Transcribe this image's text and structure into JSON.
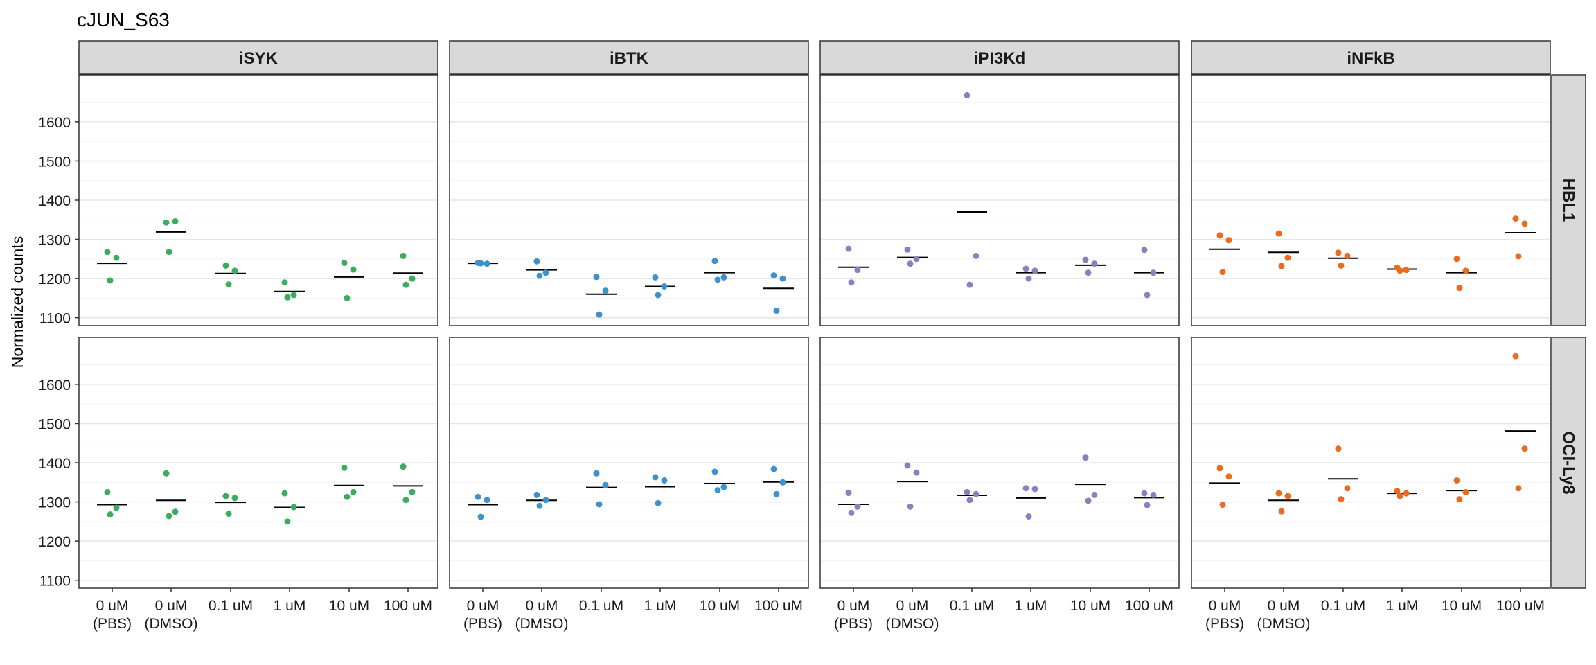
{
  "chart_data": {
    "type": "scatter",
    "title": "cJUN_S63",
    "ylabel": "Normalized counts",
    "xlabel": "",
    "ylim": [
      1080,
      1720
    ],
    "yticks": [
      1100,
      1200,
      1300,
      1400,
      1500,
      1600
    ],
    "grid": true,
    "legend": "none",
    "categories": [
      "0 uM\n(PBS)",
      "0 uM\n(DMSO)",
      "0.1 uM",
      "1 uM",
      "10 uM",
      "100 uM"
    ],
    "facet_columns": [
      {
        "label": "iSYK",
        "color": "#3aac5c"
      },
      {
        "label": "iBTK",
        "color": "#3e92cc"
      },
      {
        "label": "iPI3Kd",
        "color": "#8d7ec0"
      },
      {
        "label": "iNFkB",
        "color": "#ec6a1f"
      }
    ],
    "facet_rows": [
      "HBL1",
      "OCI-Ly8"
    ],
    "panels": [
      {
        "row": "HBL1",
        "col": "iSYK",
        "points": [
          {
            "category": 0,
            "values": [
              1268,
              1253,
              1195
            ],
            "mean": 1239
          },
          {
            "category": 1,
            "values": [
              1343,
              1346,
              1268
            ],
            "mean": 1319
          },
          {
            "category": 2,
            "values": [
              1233,
              1220,
              1185
            ],
            "mean": 1213
          },
          {
            "category": 3,
            "values": [
              1190,
              1158,
              1152
            ],
            "mean": 1167
          },
          {
            "category": 4,
            "values": [
              1240,
              1223,
              1150
            ],
            "mean": 1204
          },
          {
            "category": 5,
            "values": [
              1258,
              1200,
              1184
            ],
            "mean": 1214
          }
        ]
      },
      {
        "row": "HBL1",
        "col": "iBTK",
        "points": [
          {
            "category": 0,
            "values": [
              1240,
              1238,
              1239
            ],
            "mean": 1239
          },
          {
            "category": 1,
            "values": [
              1244,
              1215,
              1207
            ],
            "mean": 1222
          },
          {
            "category": 2,
            "values": [
              1204,
              1169,
              1108
            ],
            "mean": 1160
          },
          {
            "category": 3,
            "values": [
              1203,
              1180,
              1158
            ],
            "mean": 1180
          },
          {
            "category": 4,
            "values": [
              1245,
              1203,
              1197
            ],
            "mean": 1215
          },
          {
            "category": 5,
            "values": [
              1208,
              1200,
              1118
            ],
            "mean": 1175
          }
        ]
      },
      {
        "row": "HBL1",
        "col": "iPI3Kd",
        "points": [
          {
            "category": 0,
            "values": [
              1276,
              1222,
              1190
            ],
            "mean": 1229
          },
          {
            "category": 1,
            "values": [
              1274,
              1250,
              1238
            ],
            "mean": 1254
          },
          {
            "category": 2,
            "values": [
              1668,
              1258,
              1184
            ],
            "mean": 1370
          },
          {
            "category": 3,
            "values": [
              1225,
              1220,
              1200
            ],
            "mean": 1215
          },
          {
            "category": 4,
            "values": [
              1248,
              1238,
              1215
            ],
            "mean": 1234
          },
          {
            "category": 5,
            "values": [
              1273,
              1215,
              1158
            ],
            "mean": 1215
          }
        ]
      },
      {
        "row": "HBL1",
        "col": "iNFkB",
        "points": [
          {
            "category": 0,
            "values": [
              1310,
              1298,
              1217
            ],
            "mean": 1275
          },
          {
            "category": 1,
            "values": [
              1315,
              1253,
              1232
            ],
            "mean": 1267
          },
          {
            "category": 2,
            "values": [
              1266,
              1258,
              1233
            ],
            "mean": 1252
          },
          {
            "category": 3,
            "values": [
              1228,
              1222,
              1220
            ],
            "mean": 1224
          },
          {
            "category": 4,
            "values": [
              1250,
              1220,
              1176
            ],
            "mean": 1215
          },
          {
            "category": 5,
            "values": [
              1353,
              1340,
              1257
            ],
            "mean": 1317
          }
        ]
      },
      {
        "row": "OCI-Ly8",
        "col": "iSYK",
        "points": [
          {
            "category": 0,
            "values": [
              1325,
              1285,
              1268
            ],
            "mean": 1293
          },
          {
            "category": 1,
            "values": [
              1373,
              1275,
              1264
            ],
            "mean": 1304
          },
          {
            "category": 2,
            "values": [
              1315,
              1310,
              1270
            ],
            "mean": 1299
          },
          {
            "category": 3,
            "values": [
              1322,
              1287,
              1250
            ],
            "mean": 1286
          },
          {
            "category": 4,
            "values": [
              1387,
              1325,
              1313
            ],
            "mean": 1342
          },
          {
            "category": 5,
            "values": [
              1390,
              1325,
              1305
            ],
            "mean": 1341
          }
        ]
      },
      {
        "row": "OCI-Ly8",
        "col": "iBTK",
        "points": [
          {
            "category": 0,
            "values": [
              1313,
              1305,
              1262
            ],
            "mean": 1293
          },
          {
            "category": 1,
            "values": [
              1318,
              1305,
              1290
            ],
            "mean": 1304
          },
          {
            "category": 2,
            "values": [
              1373,
              1343,
              1294
            ],
            "mean": 1337
          },
          {
            "category": 3,
            "values": [
              1363,
              1355,
              1297
            ],
            "mean": 1339
          },
          {
            "category": 4,
            "values": [
              1377,
              1338,
              1330
            ],
            "mean": 1347
          },
          {
            "category": 5,
            "values": [
              1384,
              1350,
              1320
            ],
            "mean": 1351
          }
        ]
      },
      {
        "row": "OCI-Ly8",
        "col": "iPI3Kd",
        "points": [
          {
            "category": 0,
            "values": [
              1323,
              1288,
              1272
            ],
            "mean": 1294
          },
          {
            "category": 1,
            "values": [
              1393,
              1375,
              1288
            ],
            "mean": 1352
          },
          {
            "category": 2,
            "values": [
              1325,
              1320,
              1305
            ],
            "mean": 1317
          },
          {
            "category": 3,
            "values": [
              1335,
              1333,
              1263
            ],
            "mean": 1310
          },
          {
            "category": 4,
            "values": [
              1413,
              1318,
              1303
            ],
            "mean": 1345
          },
          {
            "category": 5,
            "values": [
              1322,
              1318,
              1292
            ],
            "mean": 1311
          }
        ]
      },
      {
        "row": "OCI-Ly8",
        "col": "iNFkB",
        "points": [
          {
            "category": 0,
            "values": [
              1386,
              1365,
              1293
            ],
            "mean": 1348
          },
          {
            "category": 1,
            "values": [
              1322,
              1315,
              1276
            ],
            "mean": 1304
          },
          {
            "category": 2,
            "values": [
              1436,
              1335,
              1307
            ],
            "mean": 1359
          },
          {
            "category": 3,
            "values": [
              1328,
              1322,
              1315
            ],
            "mean": 1322
          },
          {
            "category": 4,
            "values": [
              1355,
              1325,
              1307
            ],
            "mean": 1329
          },
          {
            "category": 5,
            "values": [
              1672,
              1436,
              1335
            ],
            "mean": 1481
          }
        ]
      }
    ]
  }
}
